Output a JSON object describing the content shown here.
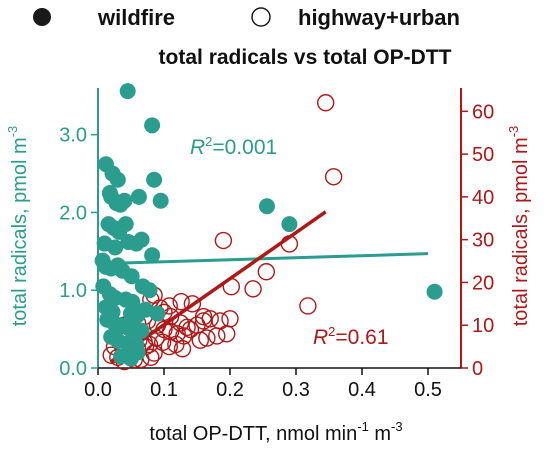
{
  "chart_data": {
    "type": "scatter",
    "title": "total radicals vs total OP-DTT",
    "legend": {
      "placement": "top",
      "entries": [
        {
          "label": "wildfire",
          "marker": "filled-circle"
        },
        {
          "label": "highway+urban",
          "marker": "open-circle"
        }
      ]
    },
    "xlabel": {
      "base": "total OP-DTT, nmol min",
      "sup1": "-1",
      "mid": " m",
      "sup2": "-3"
    },
    "ylabel_left": {
      "base": "total radicals, pmol m",
      "sup": "-3"
    },
    "ylabel_right": {
      "base": "total radicals, pmol m",
      "sup": "-3"
    },
    "xlim": [
      0,
      0.55
    ],
    "ylim_left": [
      0,
      3.6
    ],
    "ylim_right": [
      0,
      65.45
    ],
    "x_ticks": [
      "0.0",
      "0.1",
      "0.2",
      "0.3",
      "0.4",
      "0.5"
    ],
    "y_left_ticks": [
      "0.0",
      "1.0",
      "2.0",
      "3.0"
    ],
    "y_right_ticks": [
      "0",
      "10",
      "20",
      "30",
      "40",
      "50",
      "60"
    ],
    "colors": {
      "wildfire": "#2a9d8f",
      "urban": "#b01818",
      "text": "#111111"
    },
    "series": [
      {
        "name": "wildfire",
        "axis": "left",
        "x": [
          0.045,
          0.082,
          0.012,
          0.022,
          0.03,
          0.018,
          0.02,
          0.028,
          0.034,
          0.04,
          0.062,
          0.085,
          0.095,
          0.016,
          0.024,
          0.032,
          0.042,
          0.058,
          0.01,
          0.026,
          0.046,
          0.066,
          0.082,
          0.007,
          0.012,
          0.02,
          0.03,
          0.037,
          0.051,
          0.068,
          0.078,
          0.008,
          0.018,
          0.026,
          0.042,
          0.052,
          0.012,
          0.022,
          0.05,
          0.06,
          0.072,
          0.09,
          0.014,
          0.024,
          0.034,
          0.045,
          0.055,
          0.066,
          0.02,
          0.03,
          0.045,
          0.058,
          0.035,
          0.05,
          0.06,
          0.256,
          0.29,
          0.51
        ],
        "y": [
          3.56,
          3.12,
          2.62,
          2.5,
          2.42,
          2.25,
          2.2,
          2.12,
          2.1,
          2.15,
          2.2,
          2.42,
          2.15,
          1.85,
          1.8,
          1.75,
          1.85,
          1.6,
          1.6,
          1.55,
          1.62,
          1.65,
          1.45,
          1.38,
          1.3,
          1.28,
          1.32,
          1.25,
          1.18,
          1.05,
          1.0,
          1.05,
          0.95,
          0.9,
          0.88,
          0.85,
          0.78,
          0.72,
          0.7,
          0.68,
          0.75,
          0.7,
          0.62,
          0.58,
          0.55,
          0.52,
          0.5,
          0.48,
          0.4,
          0.35,
          0.32,
          0.3,
          0.15,
          0.12,
          0.2,
          2.08,
          1.85,
          0.98
        ]
      },
      {
        "name": "highway+urban",
        "axis": "right",
        "x": [
          0.345,
          0.357,
          0.29,
          0.19,
          0.255,
          0.202,
          0.235,
          0.318,
          0.143,
          0.16,
          0.108,
          0.126,
          0.08,
          0.085,
          0.094,
          0.1,
          0.11,
          0.125,
          0.135,
          0.15,
          0.16,
          0.17,
          0.185,
          0.2,
          0.04,
          0.05,
          0.06,
          0.07,
          0.075,
          0.09,
          0.1,
          0.11,
          0.12,
          0.13,
          0.14,
          0.155,
          0.165,
          0.18,
          0.195,
          0.035,
          0.048,
          0.055,
          0.062,
          0.07,
          0.078,
          0.088,
          0.098,
          0.108,
          0.118,
          0.128,
          0.025,
          0.038,
          0.05,
          0.06,
          0.072,
          0.085,
          0.03,
          0.045,
          0.052,
          0.065,
          0.08,
          0.02,
          0.04,
          0.055
        ],
        "y": [
          62,
          44.7,
          29,
          29.8,
          22.5,
          19,
          18.5,
          14.5,
          15,
          11,
          14.5,
          15.5,
          16,
          17,
          14,
          13,
          12,
          10.5,
          9.5,
          10,
          12,
          11.5,
          11,
          11.5,
          10,
          11,
          10.5,
          12,
          11,
          10,
          9,
          8.5,
          8,
          7.5,
          9,
          6.5,
          7,
          7.5,
          8,
          8,
          7.5,
          7,
          6.5,
          6,
          5.5,
          7,
          6,
          5,
          5.5,
          4.5,
          5,
          4.5,
          4,
          4.5,
          5,
          3.5,
          2.5,
          3,
          3.5,
          2,
          2.5,
          3,
          1.5,
          2
        ]
      }
    ],
    "fits": [
      {
        "series": "wildfire",
        "axis": "left",
        "x": [
          0.0,
          0.5
        ],
        "y": [
          1.34,
          1.47
        ],
        "r2": {
          "prefix": "R",
          "sup": "2",
          "value": "=0.001"
        }
      },
      {
        "series": "highway+urban",
        "axis": "right",
        "x": [
          0.02,
          0.345
        ],
        "y": [
          1.5,
          36.5
        ],
        "r2": {
          "prefix": "R",
          "sup": "2",
          "value": "=0.61"
        }
      }
    ]
  }
}
